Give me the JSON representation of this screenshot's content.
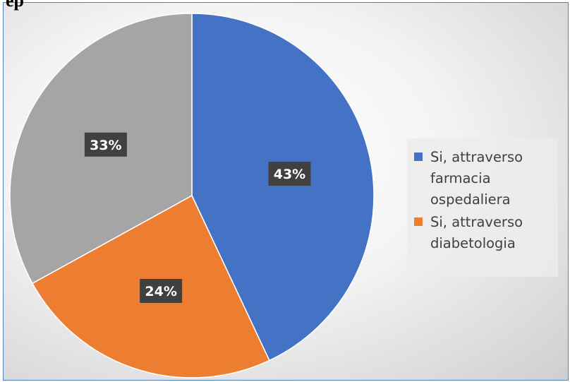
{
  "heading": "ep",
  "chart_data": {
    "type": "pie",
    "slices": [
      {
        "label": "Si, attraverso farmacia ospedaliera",
        "value": 43,
        "display": "43%",
        "color": "#4472c4"
      },
      {
        "label": "Si, attraverso diabetologia",
        "value": 24,
        "display": "24%",
        "color": "#ed7d31"
      },
      {
        "label": "",
        "value": 33,
        "display": "33%",
        "color": "#a5a5a5"
      }
    ],
    "legend": {
      "placement": "right",
      "entries": [
        {
          "label": "Si, attraverso farmacia ospedaliera",
          "color": "#4472c4"
        },
        {
          "label": "Si, attraverso diabetologia",
          "color": "#ed7d31"
        }
      ]
    }
  }
}
